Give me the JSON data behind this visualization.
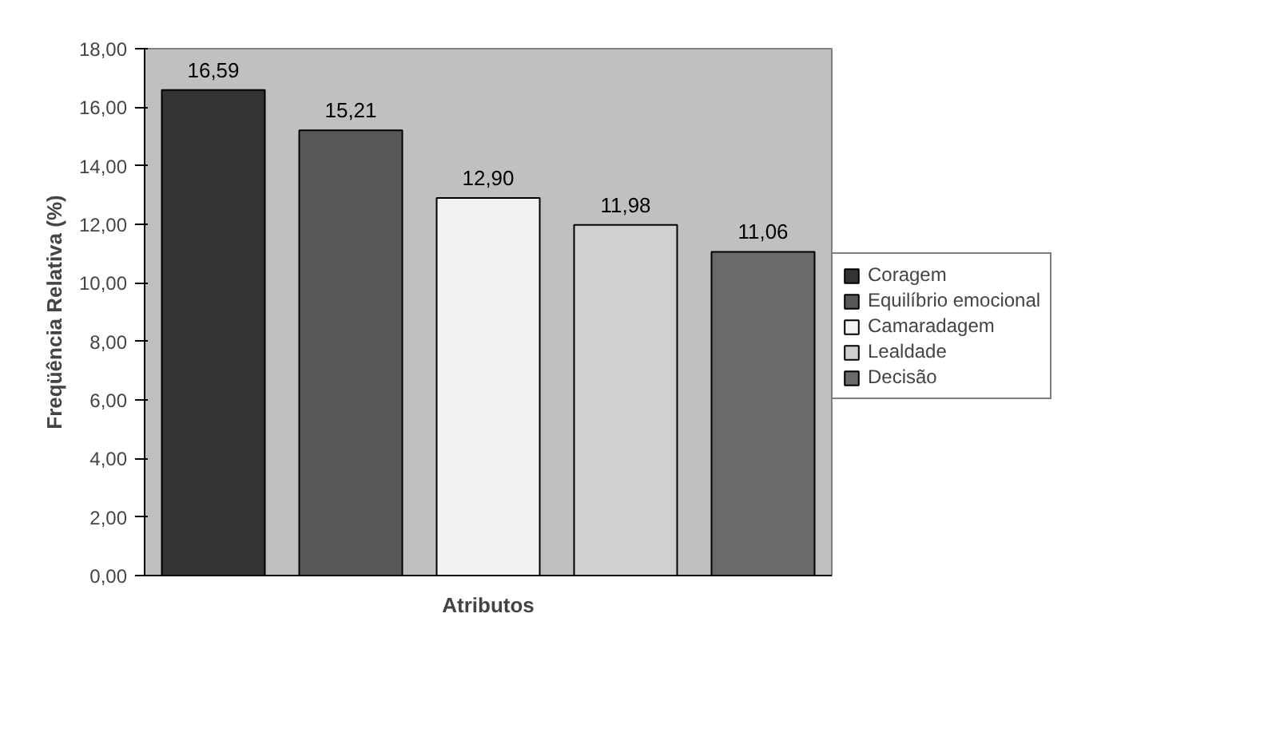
{
  "chart_data": {
    "type": "bar",
    "xlabel": "Atributos",
    "ylabel": "Freqüência Relativa (%)",
    "categories": [
      null,
      null,
      null,
      null,
      null
    ],
    "stacked": true,
    "series": [
      {
        "name": "Coragem",
        "color": "#333333",
        "values": [
          16.59,
          null,
          null,
          null,
          null
        ],
        "value_labels": [
          "16,59",
          null,
          null,
          null,
          null
        ]
      },
      {
        "name": "Equilíbrio emocional",
        "color": "#585858",
        "values": [
          null,
          15.21,
          null,
          null,
          null
        ],
        "value_labels": [
          null,
          "15,21",
          null,
          null,
          null
        ]
      },
      {
        "name": "Camaradagem",
        "color": "#f2f2f2",
        "values": [
          null,
          null,
          12.9,
          null,
          null
        ],
        "value_labels": [
          null,
          null,
          "12,90",
          null,
          null
        ]
      },
      {
        "name": "Lealdade",
        "color": "#d0d0d0",
        "values": [
          null,
          null,
          null,
          11.98,
          null
        ],
        "value_labels": [
          null,
          null,
          null,
          "11,98",
          null
        ]
      },
      {
        "name": "Decisão",
        "color": "#6a6a6a",
        "values": [
          null,
          null,
          null,
          null,
          11.06
        ],
        "value_labels": [
          null,
          null,
          null,
          null,
          "11,06"
        ]
      }
    ],
    "ylim": [
      0,
      18
    ],
    "yticks": [
      {
        "value": 0,
        "label": "0,00"
      },
      {
        "value": 2,
        "label": "2,00"
      },
      {
        "value": 4,
        "label": "4,00"
      },
      {
        "value": 6,
        "label": "6,00"
      },
      {
        "value": 8,
        "label": "8,00"
      },
      {
        "value": 10,
        "label": "10,00"
      },
      {
        "value": 12,
        "label": "12,00"
      },
      {
        "value": 14,
        "label": "14,00"
      },
      {
        "value": 16,
        "label": "16,00"
      },
      {
        "value": 18,
        "label": "18,00"
      }
    ],
    "grid": false,
    "legend": "right"
  }
}
